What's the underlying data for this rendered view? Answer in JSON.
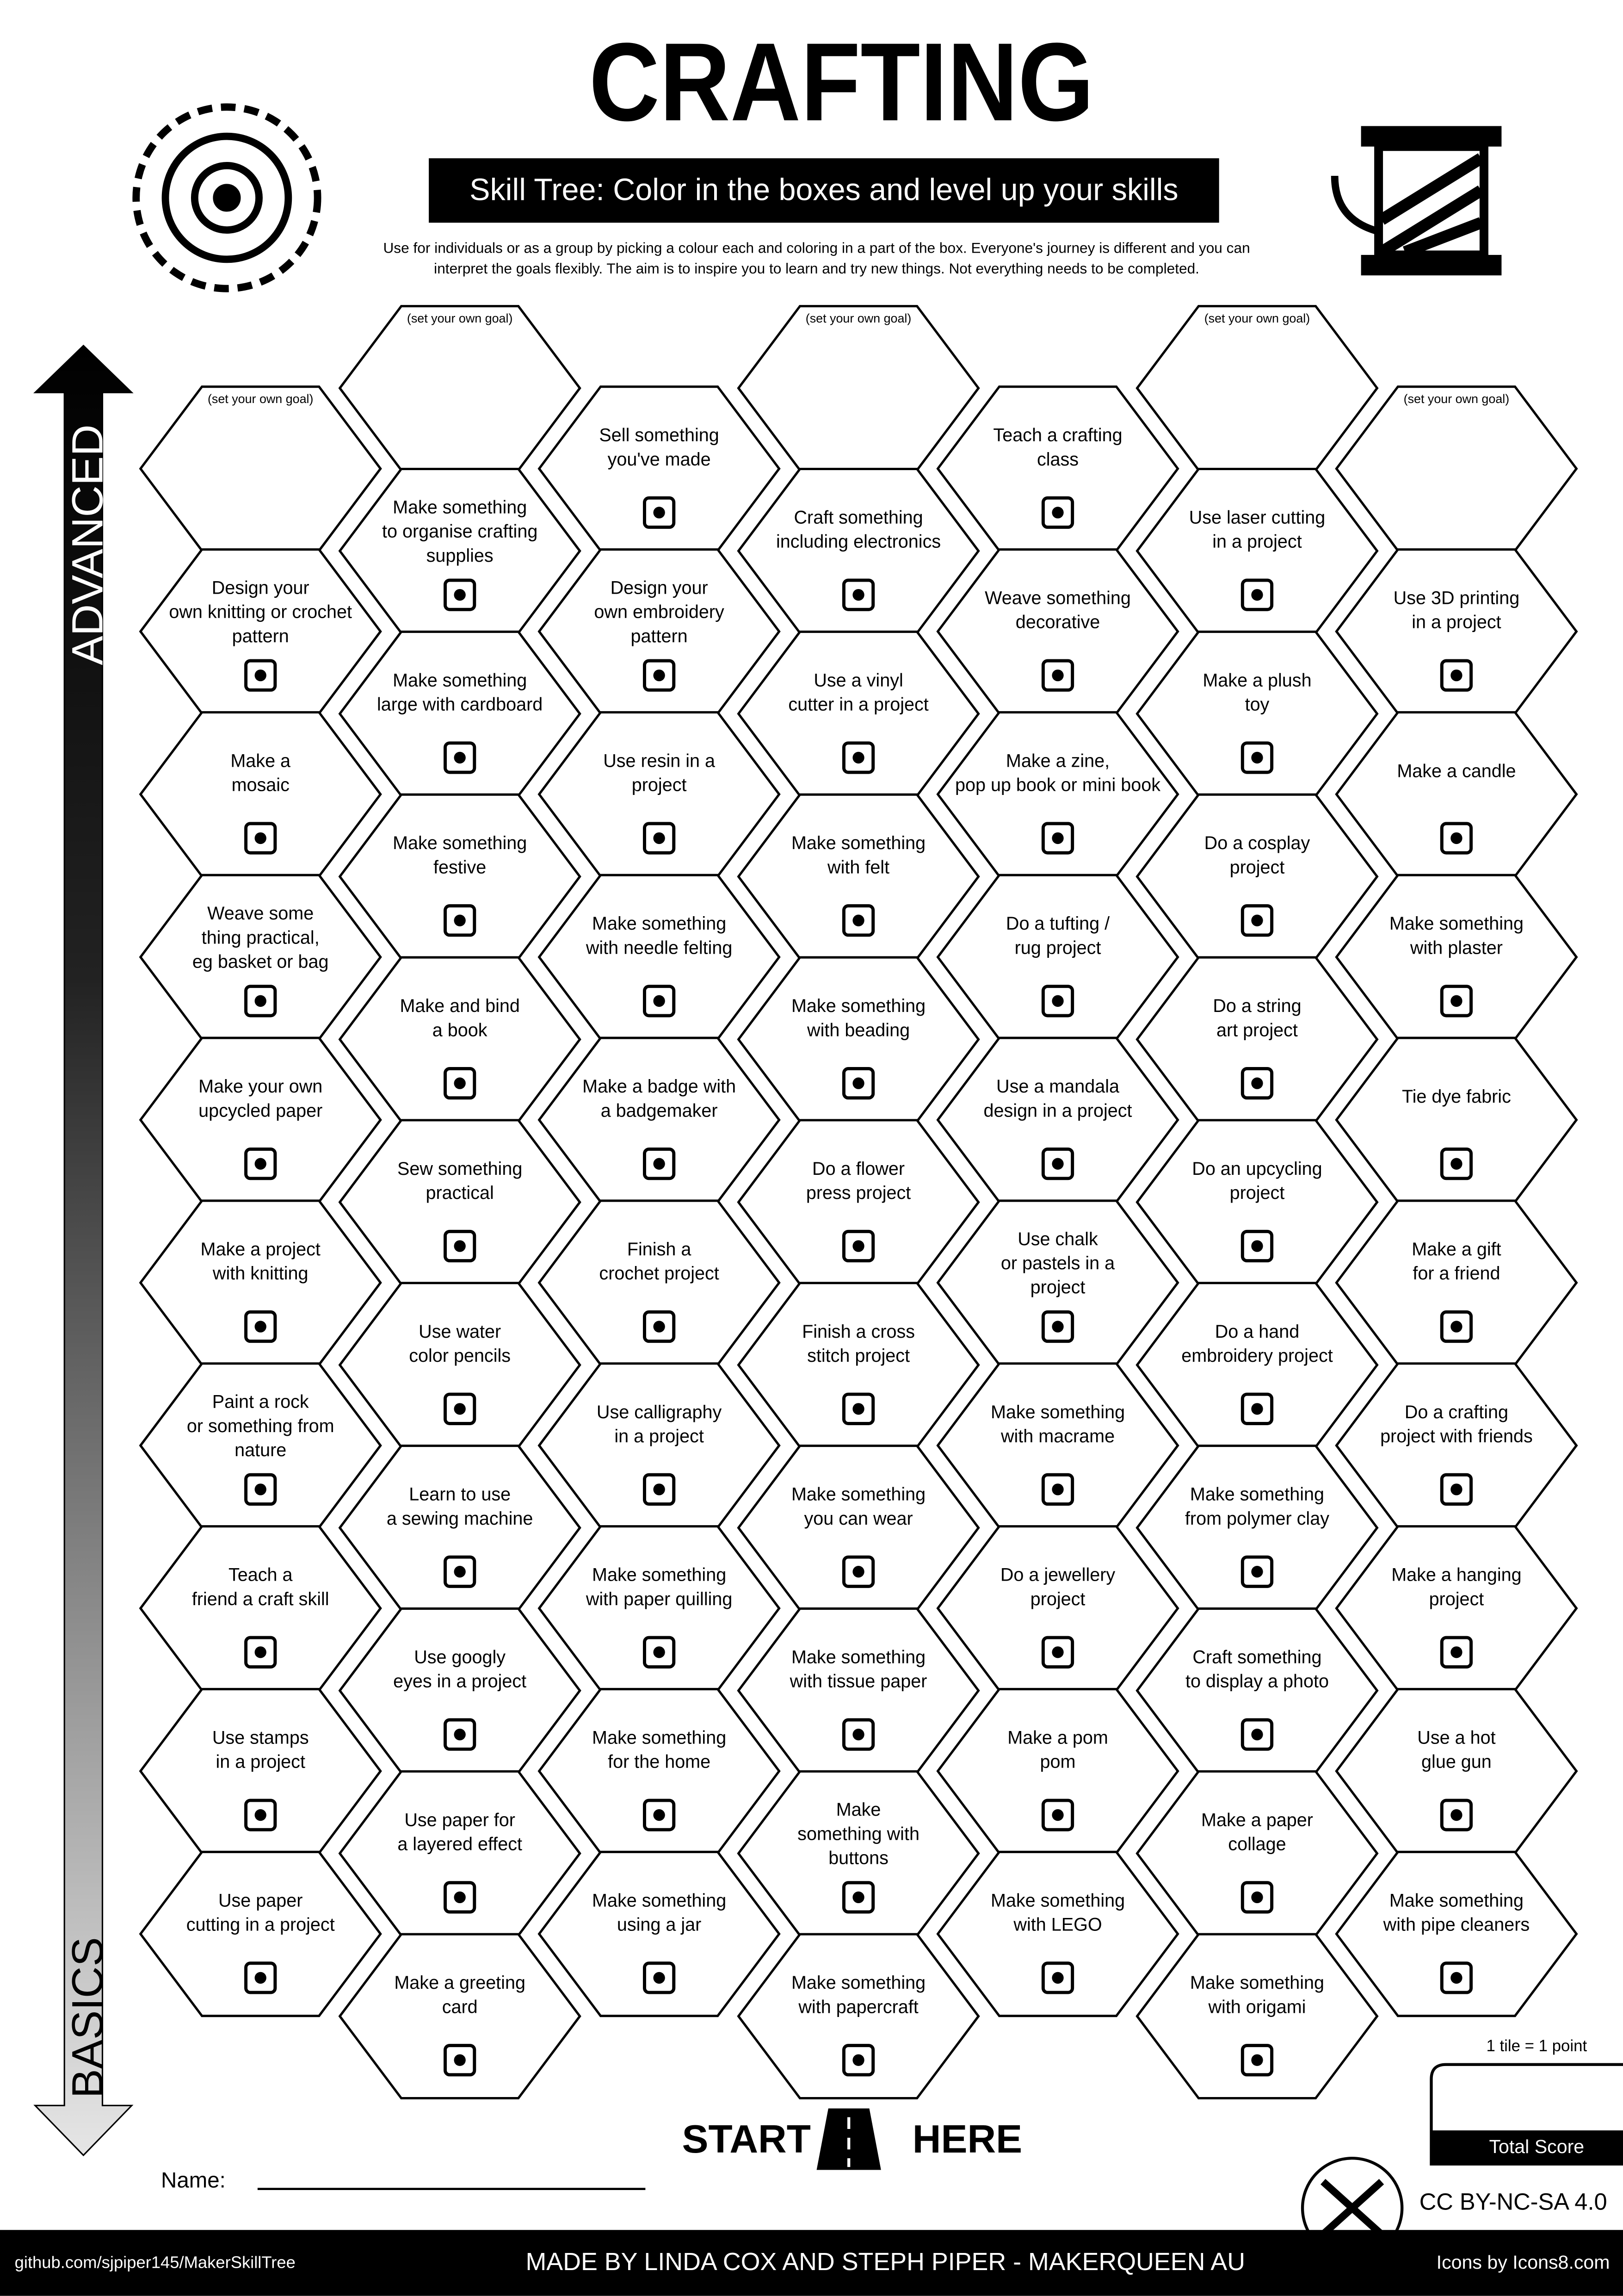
{
  "header": {
    "title": "CRAFTING",
    "subtitle": "Skill Tree:  Color in the boxes and level up your skills",
    "description": [
      "Use for individuals or as a group by picking a colour each and coloring in a part of the box.  Everyone's journey is different and you can",
      "interpret the goals flexibly.  The aim is to inspire you to learn and try new things. Not everything needs to be completed."
    ]
  },
  "axis": {
    "top": "ADVANCED",
    "bottom": "BASICS"
  },
  "columns": [
    [
      {
        "note": "(set your own goal)"
      },
      {
        "lines": [
          "Design your",
          "own knitting or crochet",
          "pattern"
        ]
      },
      {
        "lines": [
          "Make a",
          "mosaic"
        ]
      },
      {
        "lines": [
          "Weave some",
          "thing practical,",
          "eg basket or bag"
        ]
      },
      {
        "lines": [
          "Make your own",
          "upcycled paper"
        ]
      },
      {
        "lines": [
          "Make a project",
          "with knitting"
        ]
      },
      {
        "lines": [
          "Paint a rock",
          "or something from",
          "nature"
        ]
      },
      {
        "lines": [
          "Teach a",
          "friend a craft skill"
        ]
      },
      {
        "lines": [
          "Use stamps",
          "in a project"
        ]
      },
      {
        "lines": [
          "Use paper",
          "cutting in a project"
        ]
      }
    ],
    [
      {
        "note": "(set your own goal)"
      },
      {
        "lines": [
          "Make something",
          "to organise crafting",
          "supplies"
        ]
      },
      {
        "lines": [
          "Make something",
          "large with cardboard"
        ]
      },
      {
        "lines": [
          "Make something",
          "festive"
        ]
      },
      {
        "lines": [
          "Make and bind",
          "a book"
        ]
      },
      {
        "lines": [
          "Sew something",
          "practical"
        ]
      },
      {
        "lines": [
          "Use water",
          "color pencils"
        ]
      },
      {
        "lines": [
          "Learn to use",
          "a sewing machine"
        ]
      },
      {
        "lines": [
          "Use googly",
          "eyes in a project"
        ]
      },
      {
        "lines": [
          "Use paper for",
          "a layered effect"
        ]
      },
      {
        "lines": [
          "Make a greeting",
          "card"
        ]
      }
    ],
    [
      {
        "lines": [
          "Sell something",
          "you've made"
        ]
      },
      {
        "lines": [
          "Design your",
          "own embroidery",
          "pattern"
        ]
      },
      {
        "lines": [
          "Use resin in a",
          "project"
        ]
      },
      {
        "lines": [
          "Make something",
          "with needle felting"
        ]
      },
      {
        "lines": [
          "Make a badge with",
          "a badgemaker"
        ]
      },
      {
        "lines": [
          "Finish a",
          "crochet project"
        ]
      },
      {
        "lines": [
          "Use calligraphy",
          "in a project"
        ]
      },
      {
        "lines": [
          "Make something",
          "with paper quilling"
        ]
      },
      {
        "lines": [
          "Make something",
          "for the home"
        ]
      },
      {
        "lines": [
          "Make something",
          "using a jar"
        ]
      }
    ],
    [
      {
        "note": "(set your own goal)"
      },
      {
        "lines": [
          "Craft something",
          "including electronics"
        ]
      },
      {
        "lines": [
          "Use a vinyl",
          "cutter in a project"
        ]
      },
      {
        "lines": [
          "Make something",
          "with felt"
        ]
      },
      {
        "lines": [
          "Make something",
          "with beading"
        ]
      },
      {
        "lines": [
          "Do a flower",
          "press project"
        ]
      },
      {
        "lines": [
          "Finish a cross",
          "stitch project"
        ]
      },
      {
        "lines": [
          "Make something",
          "you can wear"
        ]
      },
      {
        "lines": [
          "Make something",
          "with tissue paper"
        ]
      },
      {
        "lines": [
          "Make",
          "something with",
          "buttons"
        ]
      },
      {
        "lines": [
          "Make something",
          "with papercraft"
        ]
      }
    ],
    [
      {
        "lines": [
          "Teach a crafting",
          "class"
        ]
      },
      {
        "lines": [
          "Weave something",
          "decorative"
        ]
      },
      {
        "lines": [
          "Make a zine,",
          "pop up book or mini book"
        ]
      },
      {
        "lines": [
          "Do a tufting /",
          "rug project"
        ]
      },
      {
        "lines": [
          "Use a mandala",
          "design in a project"
        ]
      },
      {
        "lines": [
          "Use chalk",
          "or pastels in a",
          "project"
        ]
      },
      {
        "lines": [
          "Make something",
          "with macrame"
        ]
      },
      {
        "lines": [
          "Do a jewellery",
          "project"
        ]
      },
      {
        "lines": [
          "Make a pom",
          "pom"
        ]
      },
      {
        "lines": [
          "Make something",
          "with LEGO"
        ]
      }
    ],
    [
      {
        "note": "(set your own goal)"
      },
      {
        "lines": [
          "Use laser cutting",
          "in a project"
        ]
      },
      {
        "lines": [
          "Make a plush",
          "toy"
        ]
      },
      {
        "lines": [
          "Do a cosplay",
          "project"
        ]
      },
      {
        "lines": [
          "Do a string",
          "art project"
        ]
      },
      {
        "lines": [
          "Do an upcycling",
          "project"
        ]
      },
      {
        "lines": [
          "Do a hand",
          "embroidery project"
        ]
      },
      {
        "lines": [
          "Make something",
          "from polymer clay"
        ]
      },
      {
        "lines": [
          "Craft something",
          "to display a photo"
        ]
      },
      {
        "lines": [
          "Make a paper",
          "collage"
        ]
      },
      {
        "lines": [
          "Make something",
          "with origami"
        ]
      }
    ],
    [
      {
        "note": "(set your own goal)"
      },
      {
        "lines": [
          "Use 3D printing",
          "in a project"
        ]
      },
      {
        "lines": [
          "Make a candle"
        ]
      },
      {
        "lines": [
          "Make something",
          "with plaster"
        ]
      },
      {
        "lines": [
          "Tie dye fabric"
        ]
      },
      {
        "lines": [
          "Make a gift",
          "for a friend"
        ]
      },
      {
        "lines": [
          "Do a crafting",
          "project with friends"
        ]
      },
      {
        "lines": [
          "Make a hanging",
          "project"
        ]
      },
      {
        "lines": [
          "Use a hot",
          "glue gun"
        ]
      },
      {
        "lines": [
          "Make something",
          "with pipe cleaners"
        ]
      }
    ]
  ],
  "score": {
    "rule": "1 tile = 1 point",
    "label": "Total Score"
  },
  "start": {
    "left": "START",
    "right": "HERE"
  },
  "name_label": "Name:",
  "footer": {
    "url": "github.com/sjpiper145/MakerSkillTree",
    "credit": "MADE BY LINDA COX  AND STEPH PIPER  -  MAKERQUEEN AU",
    "icons": "Icons by Icons8.com",
    "license": "CC BY-NC-SA 4.0"
  }
}
